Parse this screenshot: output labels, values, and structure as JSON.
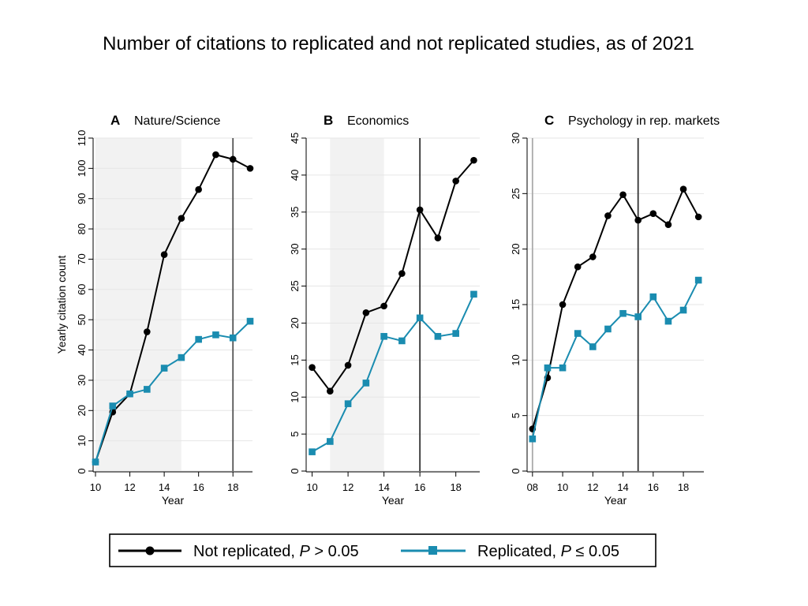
{
  "page": {
    "title": "Number of citations to replicated and not replicated studies, as of 2021"
  },
  "legend": {
    "items": [
      {
        "label": "Not replicated, P > 0.05",
        "label_prefix": "Not replicated, ",
        "label_var": "P",
        "label_suffix": " > 0.05",
        "color": "#000000",
        "marker": "circle"
      },
      {
        "label": "Replicated, P ≤ 0.05",
        "label_prefix": "Replicated, ",
        "label_var": "P",
        "label_suffix": " ≤ 0.05",
        "color": "#1a8cb0",
        "marker": "square"
      }
    ]
  },
  "colors": {
    "not_replicated": "#000000",
    "replicated": "#1a8cb0",
    "shade": "#f2f2f2",
    "grid": "#e6e6e6"
  },
  "chart_data": [
    {
      "type": "line",
      "letter": "A",
      "title": "Nature/Science",
      "xlabel": "Year",
      "ylabel": "Yearly citation count",
      "xlim": [
        10,
        19
      ],
      "ylim": [
        0,
        110
      ],
      "xticks": [
        10,
        12,
        14,
        16,
        18
      ],
      "xtick_labels": [
        "10",
        "12",
        "14",
        "16",
        "18"
      ],
      "yticks": [
        0,
        10,
        20,
        30,
        40,
        50,
        60,
        70,
        80,
        90,
        100,
        110
      ],
      "grid": true,
      "shaded_x_range": [
        10,
        15
      ],
      "vertical_lines": [
        {
          "x": 18,
          "color": "#555555"
        }
      ],
      "x": [
        10,
        11,
        12,
        13,
        14,
        15,
        16,
        17,
        18,
        19
      ],
      "series": [
        {
          "name": "Not replicated, P > 0.05",
          "values": [
            3,
            19.5,
            25.5,
            46,
            71.5,
            83.5,
            93,
            104.5,
            103,
            100
          ]
        },
        {
          "name": "Replicated, P ≤ 0.05",
          "values": [
            3,
            21.5,
            25.5,
            27,
            34,
            37.5,
            43.5,
            45,
            44,
            49.5
          ]
        }
      ]
    },
    {
      "type": "line",
      "letter": "B",
      "title": "Economics",
      "xlabel": "Year",
      "ylabel": "",
      "xlim": [
        9.8,
        19.2
      ],
      "ylim": [
        0,
        45
      ],
      "xticks": [
        10,
        12,
        14,
        16,
        18
      ],
      "xtick_labels": [
        "10",
        "12",
        "14",
        "16",
        "18"
      ],
      "yticks": [
        0,
        5,
        10,
        15,
        20,
        25,
        30,
        35,
        40,
        45
      ],
      "grid": true,
      "shaded_x_range": [
        11,
        14
      ],
      "vertical_lines": [
        {
          "x": 16,
          "color": "#333333"
        }
      ],
      "x": [
        10,
        11,
        12,
        13,
        14,
        15,
        16,
        17,
        18,
        19
      ],
      "series": [
        {
          "name": "Not replicated, P > 0.05",
          "values": [
            14,
            10.8,
            14.3,
            21.4,
            22.3,
            26.7,
            35.3,
            31.5,
            39.2,
            42
          ]
        },
        {
          "name": "Replicated, P ≤ 0.05",
          "values": [
            2.6,
            4,
            9.1,
            11.9,
            18.2,
            17.6,
            20.7,
            18.2,
            18.6,
            23.9
          ]
        }
      ]
    },
    {
      "type": "line",
      "letter": "C",
      "title": "Psychology in rep. markets",
      "xlabel": "Year",
      "ylabel": "",
      "xlim": [
        7.8,
        19.2
      ],
      "ylim": [
        0,
        30
      ],
      "xticks": [
        8,
        10,
        12,
        14,
        16,
        18
      ],
      "xtick_labels": [
        "08",
        "10",
        "12",
        "14",
        "16",
        "18"
      ],
      "yticks": [
        0,
        5,
        10,
        15,
        20,
        25,
        30
      ],
      "grid": true,
      "shaded_x_range": null,
      "vertical_lines": [
        {
          "x": 8,
          "color": "#aaaaaa"
        },
        {
          "x": 15,
          "color": "#333333"
        }
      ],
      "x": [
        8,
        9,
        10,
        11,
        12,
        13,
        14,
        15,
        16,
        17,
        18,
        19
      ],
      "series": [
        {
          "name": "Not replicated, P > 0.05",
          "values": [
            3.8,
            8.4,
            15,
            18.4,
            19.3,
            23,
            24.9,
            22.6,
            23.2,
            22.2,
            25.4,
            22.9
          ]
        },
        {
          "name": "Replicated, P ≤ 0.05",
          "values": [
            2.9,
            9.3,
            9.3,
            12.4,
            11.2,
            12.8,
            14.2,
            13.9,
            15.7,
            13.5,
            14.5,
            17.2
          ]
        }
      ]
    }
  ]
}
